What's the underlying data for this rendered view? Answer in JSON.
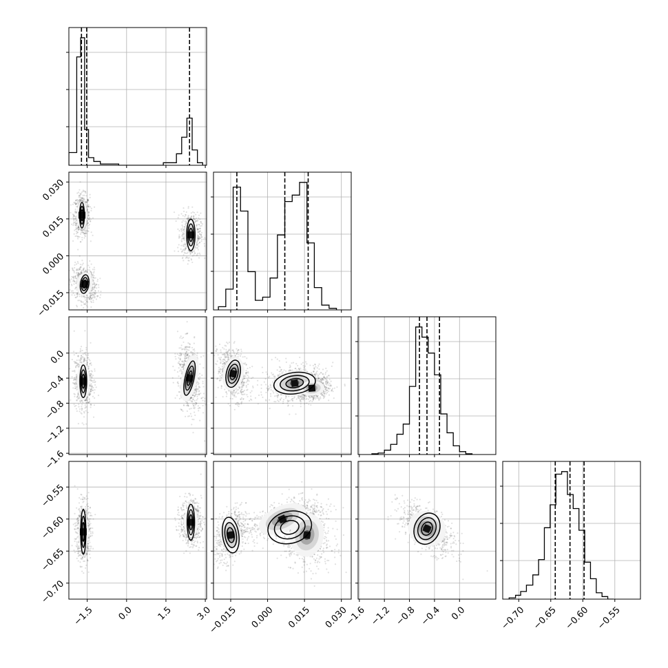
{
  "chart_data": {
    "type": "corner",
    "title": "",
    "parameters": 4,
    "colors": {
      "line": "#000000",
      "grid": "#b0b0b0",
      "points": "#000000"
    },
    "axis_ranges": [
      [
        -2.2,
        3.05
      ],
      [
        -0.022,
        0.034
      ],
      [
        -1.62,
        0.58
      ],
      [
        -0.725,
        -0.51
      ]
    ],
    "bottom_ticks": [
      [
        "-1.5",
        "0.0",
        "1.5",
        "3.0"
      ],
      [
        "-0.015",
        "0.000",
        "0.015",
        "0.030"
      ],
      [
        "-1.6",
        "-1.2",
        "-0.8",
        "-0.4",
        "0.0"
      ],
      [
        "-0.70",
        "-0.65",
        "-0.60",
        "-0.55"
      ]
    ],
    "left_ticks": [
      [],
      [
        "-0.015",
        "0.000",
        "0.015",
        "0.030"
      ],
      [
        "-1.6",
        "-1.2",
        "-0.8",
        "-0.4",
        "0.0"
      ],
      [
        "-0.70",
        "-0.65",
        "-0.60",
        "-0.55"
      ]
    ],
    "quantiles": [
      [
        -1.72,
        -1.52,
        2.4
      ],
      [
        -0.0125,
        0.007,
        0.0165
      ],
      [
        -0.64,
        -0.52,
        -0.32
      ],
      [
        -0.643,
        -0.62,
        -0.598
      ]
    ],
    "histograms": [
      {
        "bin_edges": [
          -2.2,
          -1.9,
          -1.75,
          -1.6,
          -1.45,
          -1.25,
          -1.0,
          -0.7,
          -0.3,
          0.2,
          0.8,
          1.4,
          1.9,
          2.1,
          2.3,
          2.5,
          2.7,
          2.9,
          3.05
        ],
        "counts": [
          0.1,
          0.85,
          1.0,
          0.28,
          0.06,
          0.03,
          0.01,
          0.01,
          0.0,
          0.0,
          0.0,
          0.02,
          0.09,
          0.22,
          0.37,
          0.12,
          0.02,
          0.0
        ]
      },
      {
        "bin_edges": [
          -0.02,
          -0.017,
          -0.014,
          -0.011,
          -0.008,
          -0.005,
          -0.002,
          0.001,
          0.004,
          0.007,
          0.01,
          0.013,
          0.016,
          0.019,
          0.022,
          0.025,
          0.028
        ],
        "counts": [
          0.02,
          0.13,
          0.77,
          0.62,
          0.24,
          0.06,
          0.08,
          0.2,
          0.47,
          0.68,
          0.72,
          0.8,
          0.42,
          0.14,
          0.03,
          0.01
        ]
      },
      {
        "bin_edges": [
          -1.4,
          -1.3,
          -1.2,
          -1.1,
          -1.0,
          -0.9,
          -0.8,
          -0.7,
          -0.6,
          -0.5,
          -0.4,
          -0.3,
          -0.2,
          -0.1,
          0.0,
          0.1,
          0.2
        ],
        "counts": [
          0.005,
          0.01,
          0.03,
          0.07,
          0.14,
          0.21,
          0.47,
          0.88,
          0.81,
          0.7,
          0.55,
          0.28,
          0.15,
          0.06,
          0.02,
          0.005
        ]
      },
      {
        "bin_edges": [
          -0.715,
          -0.705,
          -0.697,
          -0.688,
          -0.678,
          -0.669,
          -0.66,
          -0.651,
          -0.642,
          -0.633,
          -0.624,
          -0.615,
          -0.606,
          -0.597,
          -0.588,
          -0.579,
          -0.57,
          -0.561,
          -0.552
        ],
        "counts": [
          0.01,
          0.03,
          0.06,
          0.11,
          0.19,
          0.31,
          0.56,
          0.74,
          0.98,
          1.0,
          0.82,
          0.71,
          0.54,
          0.29,
          0.16,
          0.05,
          0.02,
          0.0
        ]
      }
    ],
    "blobs": {
      "1_0": [
        [
          -1.7,
          0.0165,
          0.12,
          0.0033,
          0
        ],
        [
          -1.6,
          -0.0115,
          0.18,
          0.0028,
          -0.2
        ],
        [
          2.45,
          0.0085,
          0.15,
          0.0035,
          0
        ]
      ],
      "2_0": [
        [
          -1.65,
          -0.45,
          0.14,
          0.18,
          0
        ],
        [
          2.4,
          -0.4,
          0.18,
          0.22,
          -0.3
        ]
      ],
      "2_1": [
        [
          -0.014,
          -0.33,
          0.0025,
          0.16,
          -0.3
        ],
        [
          0.011,
          -0.48,
          0.005,
          0.12,
          0.2
        ],
        [
          0.018,
          -0.56,
          0.003,
          0.07,
          0.1
        ]
      ],
      "3_0": [
        [
          -1.65,
          -0.62,
          0.11,
          0.018,
          0
        ],
        [
          2.45,
          -0.605,
          0.16,
          0.014,
          0
        ]
      ],
      "3_1": [
        [
          -0.015,
          -0.625,
          0.0025,
          0.016,
          0.3
        ],
        [
          0.006,
          -0.6,
          0.006,
          0.012,
          0.6
        ],
        [
          0.016,
          -0.625,
          0.004,
          0.02,
          -0.2
        ]
      ],
      "3_2": [
        [
          -0.52,
          -0.615,
          0.18,
          0.016,
          -0.6
        ]
      ]
    },
    "contours": {
      "1_0": [
        [
          -1.7,
          0.0165,
          0.09,
          0.0052,
          0
        ],
        [
          -1.6,
          -0.0115,
          0.16,
          0.0038,
          -0.2
        ],
        [
          2.45,
          0.0085,
          0.16,
          0.0064,
          0
        ]
      ],
      "2_0": [
        [
          -1.65,
          -0.45,
          0.13,
          0.26,
          0
        ],
        [
          2.4,
          -0.4,
          0.17,
          0.28,
          -0.3
        ]
      ],
      "2_1": [
        [
          -0.014,
          -0.33,
          0.0028,
          0.22,
          -0.3
        ],
        [
          0.011,
          -0.48,
          0.0085,
          0.17,
          0.2
        ]
      ],
      "3_0": [
        [
          -1.65,
          -0.62,
          0.1,
          0.035,
          0
        ],
        [
          2.45,
          -0.605,
          0.14,
          0.028,
          0
        ]
      ],
      "3_1": [
        [
          -0.015,
          -0.625,
          0.0033,
          0.028,
          0.2
        ],
        [
          0.009,
          -0.613,
          0.009,
          0.025,
          0.35
        ]
      ],
      "3_2": [
        [
          -0.52,
          -0.615,
          0.2,
          0.025,
          -0.55
        ]
      ]
    },
    "grid": true,
    "legend": "none"
  }
}
